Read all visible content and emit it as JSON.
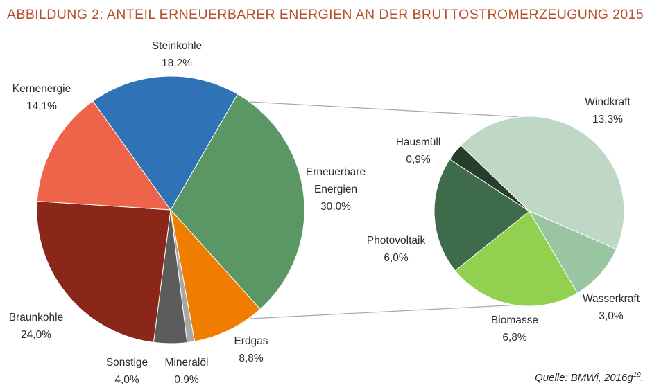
{
  "title": "ABBILDUNG 2: ANTEIL ERNEUERBARER ENERGIEN AN DER BRUTTOSTROMERZEUGUNG 2015",
  "source": {
    "text": "Quelle: BMWi, 2016g",
    "superscript": "19",
    "suffix": "."
  },
  "chart_data": [
    {
      "type": "pie",
      "slices": [
        {
          "label": "Erneuerbare Energien",
          "value_label": "30,0%",
          "value": 30.0,
          "color": "#5b9764"
        },
        {
          "label": "Erdgas",
          "value_label": "8,8%",
          "value": 8.8,
          "color": "#ee7d00"
        },
        {
          "label": "Mineralöl",
          "value_label": "0,9%",
          "value": 0.9,
          "color": "#a8a8a8"
        },
        {
          "label": "Sonstige",
          "value_label": "4,0%",
          "value": 4.0,
          "color": "#5c5c5c"
        },
        {
          "label": "Braunkohle",
          "value_label": "24,0%",
          "value": 24.0,
          "color": "#8b2718"
        },
        {
          "label": "Kernenergie",
          "value_label": "14,1%",
          "value": 14.1,
          "color": "#ee644a"
        },
        {
          "label": "Steinkohle",
          "value_label": "18,2%",
          "value": 18.2,
          "color": "#2f72b5"
        }
      ]
    },
    {
      "type": "pie",
      "slices": [
        {
          "label": "Windkraft",
          "value_label": "13,3%",
          "value": 13.3,
          "color": "#bfd8c6"
        },
        {
          "label": "Wasserkraft",
          "value_label": "3,0%",
          "value": 3.0,
          "color": "#99c5a1"
        },
        {
          "label": "Biomasse",
          "value_label": "6,8%",
          "value": 6.8,
          "color": "#92d050"
        },
        {
          "label": "Photovoltaik",
          "value_label": "6,0%",
          "value": 6.0,
          "color": "#3e6b49"
        },
        {
          "label": "Hausmüll",
          "value_label": "0,9%",
          "value": 0.9,
          "color": "#263f2c"
        }
      ]
    }
  ]
}
